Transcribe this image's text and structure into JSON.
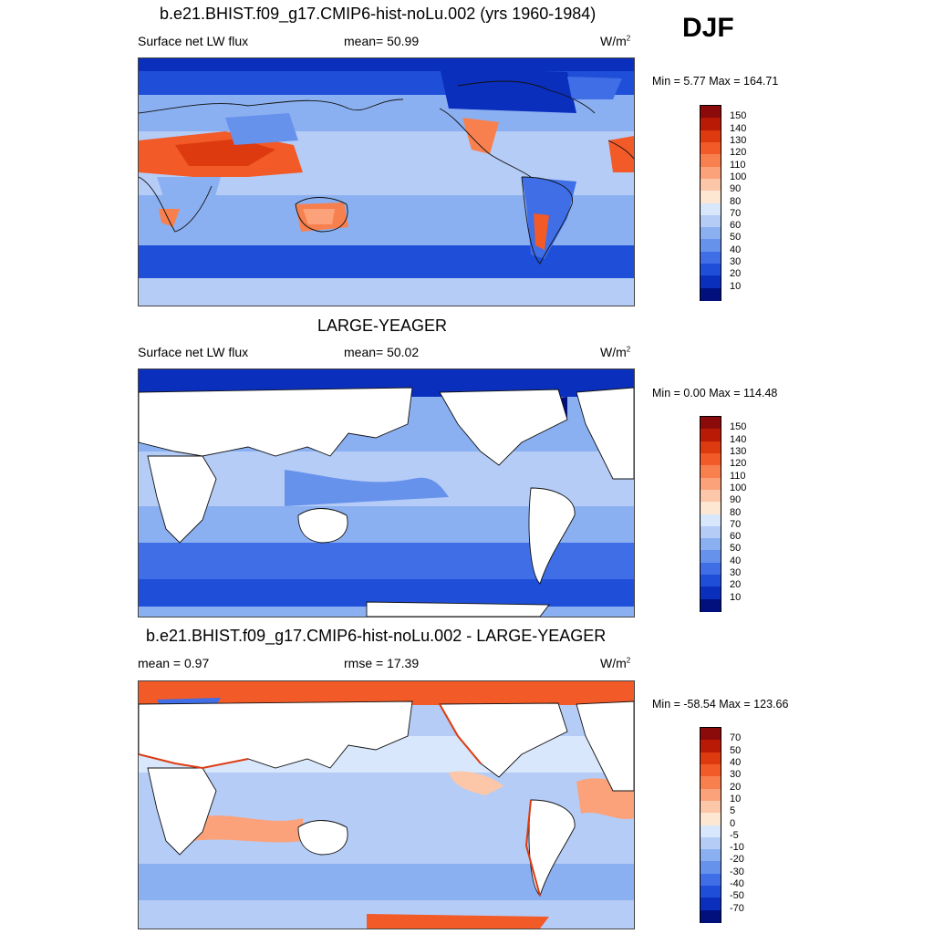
{
  "season": "DJF",
  "panels": [
    {
      "title": "b.e21.BHIST.f09_g17.CMIP6-hist-noLu.002 (yrs 1960-1984)",
      "left_text": "Surface net LW flux",
      "center_text": "mean=  50.99",
      "units": "W/m",
      "units_sup": "2",
      "minmax": "Min =   5.77 Max = 164.71",
      "colorbar": {
        "labels": [
          "150",
          "140",
          "130",
          "120",
          "110",
          "100",
          "90",
          "80",
          "70",
          "60",
          "50",
          "40",
          "30",
          "20",
          "10"
        ],
        "colors": [
          "#8b0a0a",
          "#b81a05",
          "#dd3a10",
          "#f25a28",
          "#f8804e",
          "#fba27b",
          "#fcc6a8",
          "#fde6d2",
          "#d8e7fb",
          "#b4ccf6",
          "#8bb0f1",
          "#6792ec",
          "#3f6ee6",
          "#1f4fd9",
          "#0a2fbd",
          "#02107e"
        ]
      },
      "map_kind": "full"
    },
    {
      "title": "LARGE-YEAGER",
      "left_text": "Surface net LW flux",
      "center_text": "mean=  50.02",
      "units": "W/m",
      "units_sup": "2",
      "minmax": "Min =   0.00 Max = 114.48",
      "colorbar": {
        "labels": [
          "150",
          "140",
          "130",
          "120",
          "110",
          "100",
          "90",
          "80",
          "70",
          "60",
          "50",
          "40",
          "30",
          "20",
          "10"
        ],
        "colors": [
          "#8b0a0a",
          "#b81a05",
          "#dd3a10",
          "#f25a28",
          "#f8804e",
          "#fba27b",
          "#fcc6a8",
          "#fde6d2",
          "#d8e7fb",
          "#b4ccf6",
          "#8bb0f1",
          "#6792ec",
          "#3f6ee6",
          "#1f4fd9",
          "#0a2fbd",
          "#02107e"
        ]
      },
      "map_kind": "ocean"
    },
    {
      "title": "b.e21.BHIST.f09_g17.CMIP6-hist-noLu.002 - LARGE-YEAGER",
      "left_text": "mean =   0.97",
      "center_text": "rmse =  17.39",
      "units": "W/m",
      "units_sup": "2",
      "minmax": "Min = -58.54 Max = 123.66",
      "colorbar": {
        "labels": [
          "70",
          "50",
          "40",
          "30",
          "20",
          "10",
          "5",
          "0",
          "-5",
          "-10",
          "-20",
          "-30",
          "-40",
          "-50",
          "-70"
        ],
        "colors": [
          "#8b0a0a",
          "#b81a05",
          "#dd3a10",
          "#f25a28",
          "#f8804e",
          "#fba27b",
          "#fcc6a8",
          "#fde6d2",
          "#d8e7fb",
          "#b4ccf6",
          "#8bb0f1",
          "#6792ec",
          "#3f6ee6",
          "#1f4fd9",
          "#0a2fbd",
          "#02107e"
        ]
      },
      "map_kind": "diff"
    }
  ]
}
